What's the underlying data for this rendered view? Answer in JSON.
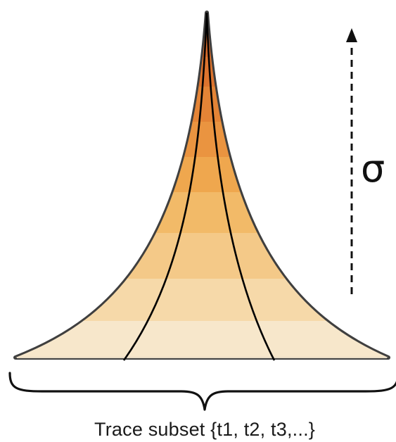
{
  "diagram": {
    "axis_symbol": "σ",
    "caption": "Trace subset {t1, t2, t3,...}",
    "band_colors": [
      "#F7E7CB",
      "#F6D9A9",
      "#F4C988",
      "#F2BA68",
      "#EFA74E",
      "#EA9440",
      "#E48436",
      "#DD742E",
      "#D76A2A"
    ],
    "outline_color": "#4a4a4a",
    "trace_color": "#000000"
  }
}
